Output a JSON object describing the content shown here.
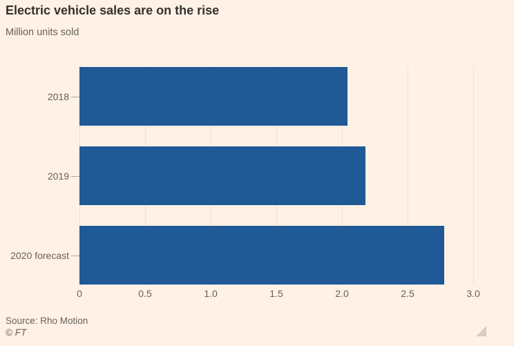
{
  "header": {
    "title": "Electric vehicle sales are on the rise",
    "subtitle": "Million units sold"
  },
  "footer": {
    "source": "Source: Rho Motion",
    "copyright": "© FT"
  },
  "colors": {
    "background": "#FFF1E5",
    "bar": "#1F5A96",
    "title_text": "#33302E",
    "muted_text": "#66605C",
    "gridline": "#EEDFCE",
    "tick_mark": "#B0A69C",
    "resize_handle": "#D8CBC0"
  },
  "icons": {
    "resize_handle": "triangle-resize-handle"
  },
  "chart_data": {
    "type": "bar",
    "orientation": "horizontal",
    "title": "Electric vehicle sales are on the rise",
    "subtitle": "Million units sold",
    "categories": [
      "2018",
      "2019",
      "2020 forecast"
    ],
    "values": [
      2.04,
      2.18,
      2.78
    ],
    "xlim": [
      0,
      3.0
    ],
    "x_ticks": [
      0,
      0.5,
      1.0,
      1.5,
      2.0,
      2.5,
      3.0
    ],
    "x_tick_labels": [
      "0",
      "0.5",
      "1.0",
      "1.5",
      "2.0",
      "2.5",
      "3.0"
    ],
    "grid": "vertical",
    "legend": "none",
    "source": "Rho Motion"
  }
}
